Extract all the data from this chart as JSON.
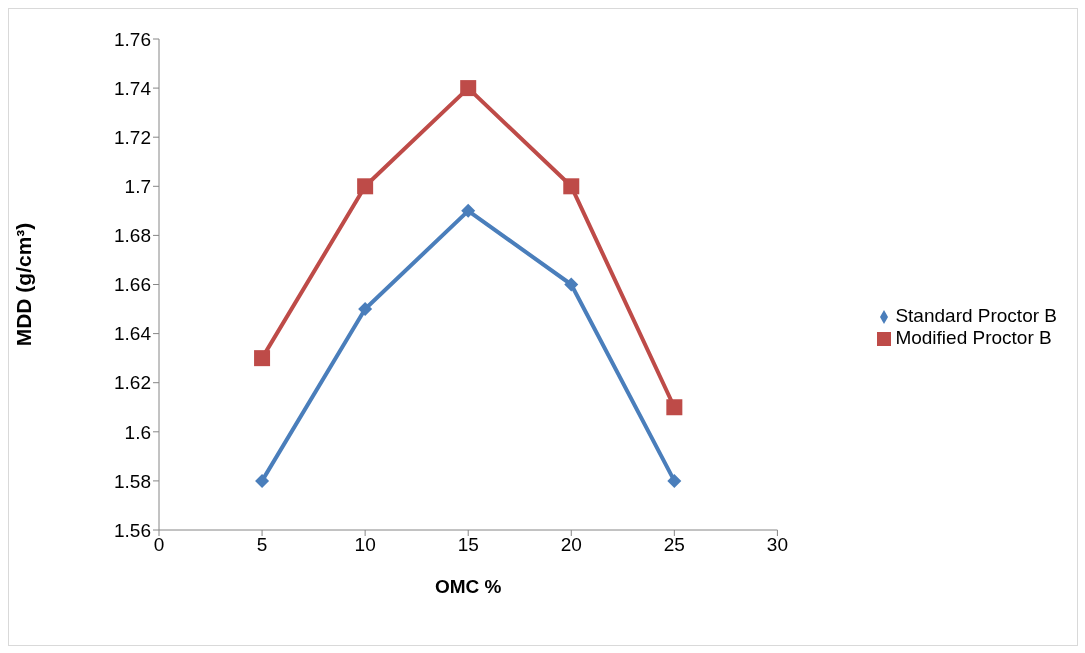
{
  "chart_data": {
    "type": "line",
    "xlabel": "OMC %",
    "ylabel": "MDD (g/cm³)",
    "x": [
      5,
      10,
      15,
      20,
      25
    ],
    "series": [
      {
        "name": "Standard Proctor B",
        "color": "#4a7ebb",
        "marker": "diamond",
        "values": [
          1.58,
          1.65,
          1.69,
          1.66,
          1.58
        ]
      },
      {
        "name": "Modified Proctor B",
        "color": "#be4b48",
        "marker": "square",
        "values": [
          1.63,
          1.7,
          1.74,
          1.7,
          1.61
        ]
      }
    ],
    "xlim": [
      0,
      30
    ],
    "xticks": [
      0,
      5,
      10,
      15,
      20,
      25,
      30
    ],
    "ylim": [
      1.56,
      1.76
    ],
    "yticks": [
      {
        "value": 1.56,
        "label": "1.56"
      },
      {
        "value": 1.58,
        "label": "1.58"
      },
      {
        "value": 1.6,
        "label": "1.6"
      },
      {
        "value": 1.62,
        "label": "1.62"
      },
      {
        "value": 1.64,
        "label": "1.64"
      },
      {
        "value": 1.66,
        "label": "1.66"
      },
      {
        "value": 1.68,
        "label": "1.68"
      },
      {
        "value": 1.7,
        "label": "1.7"
      },
      {
        "value": 1.72,
        "label": "1.72"
      },
      {
        "value": 1.74,
        "label": "1.74"
      },
      {
        "value": 1.76,
        "label": "1.76"
      }
    ],
    "grid": false,
    "legend": "right",
    "line_style": "solid"
  }
}
